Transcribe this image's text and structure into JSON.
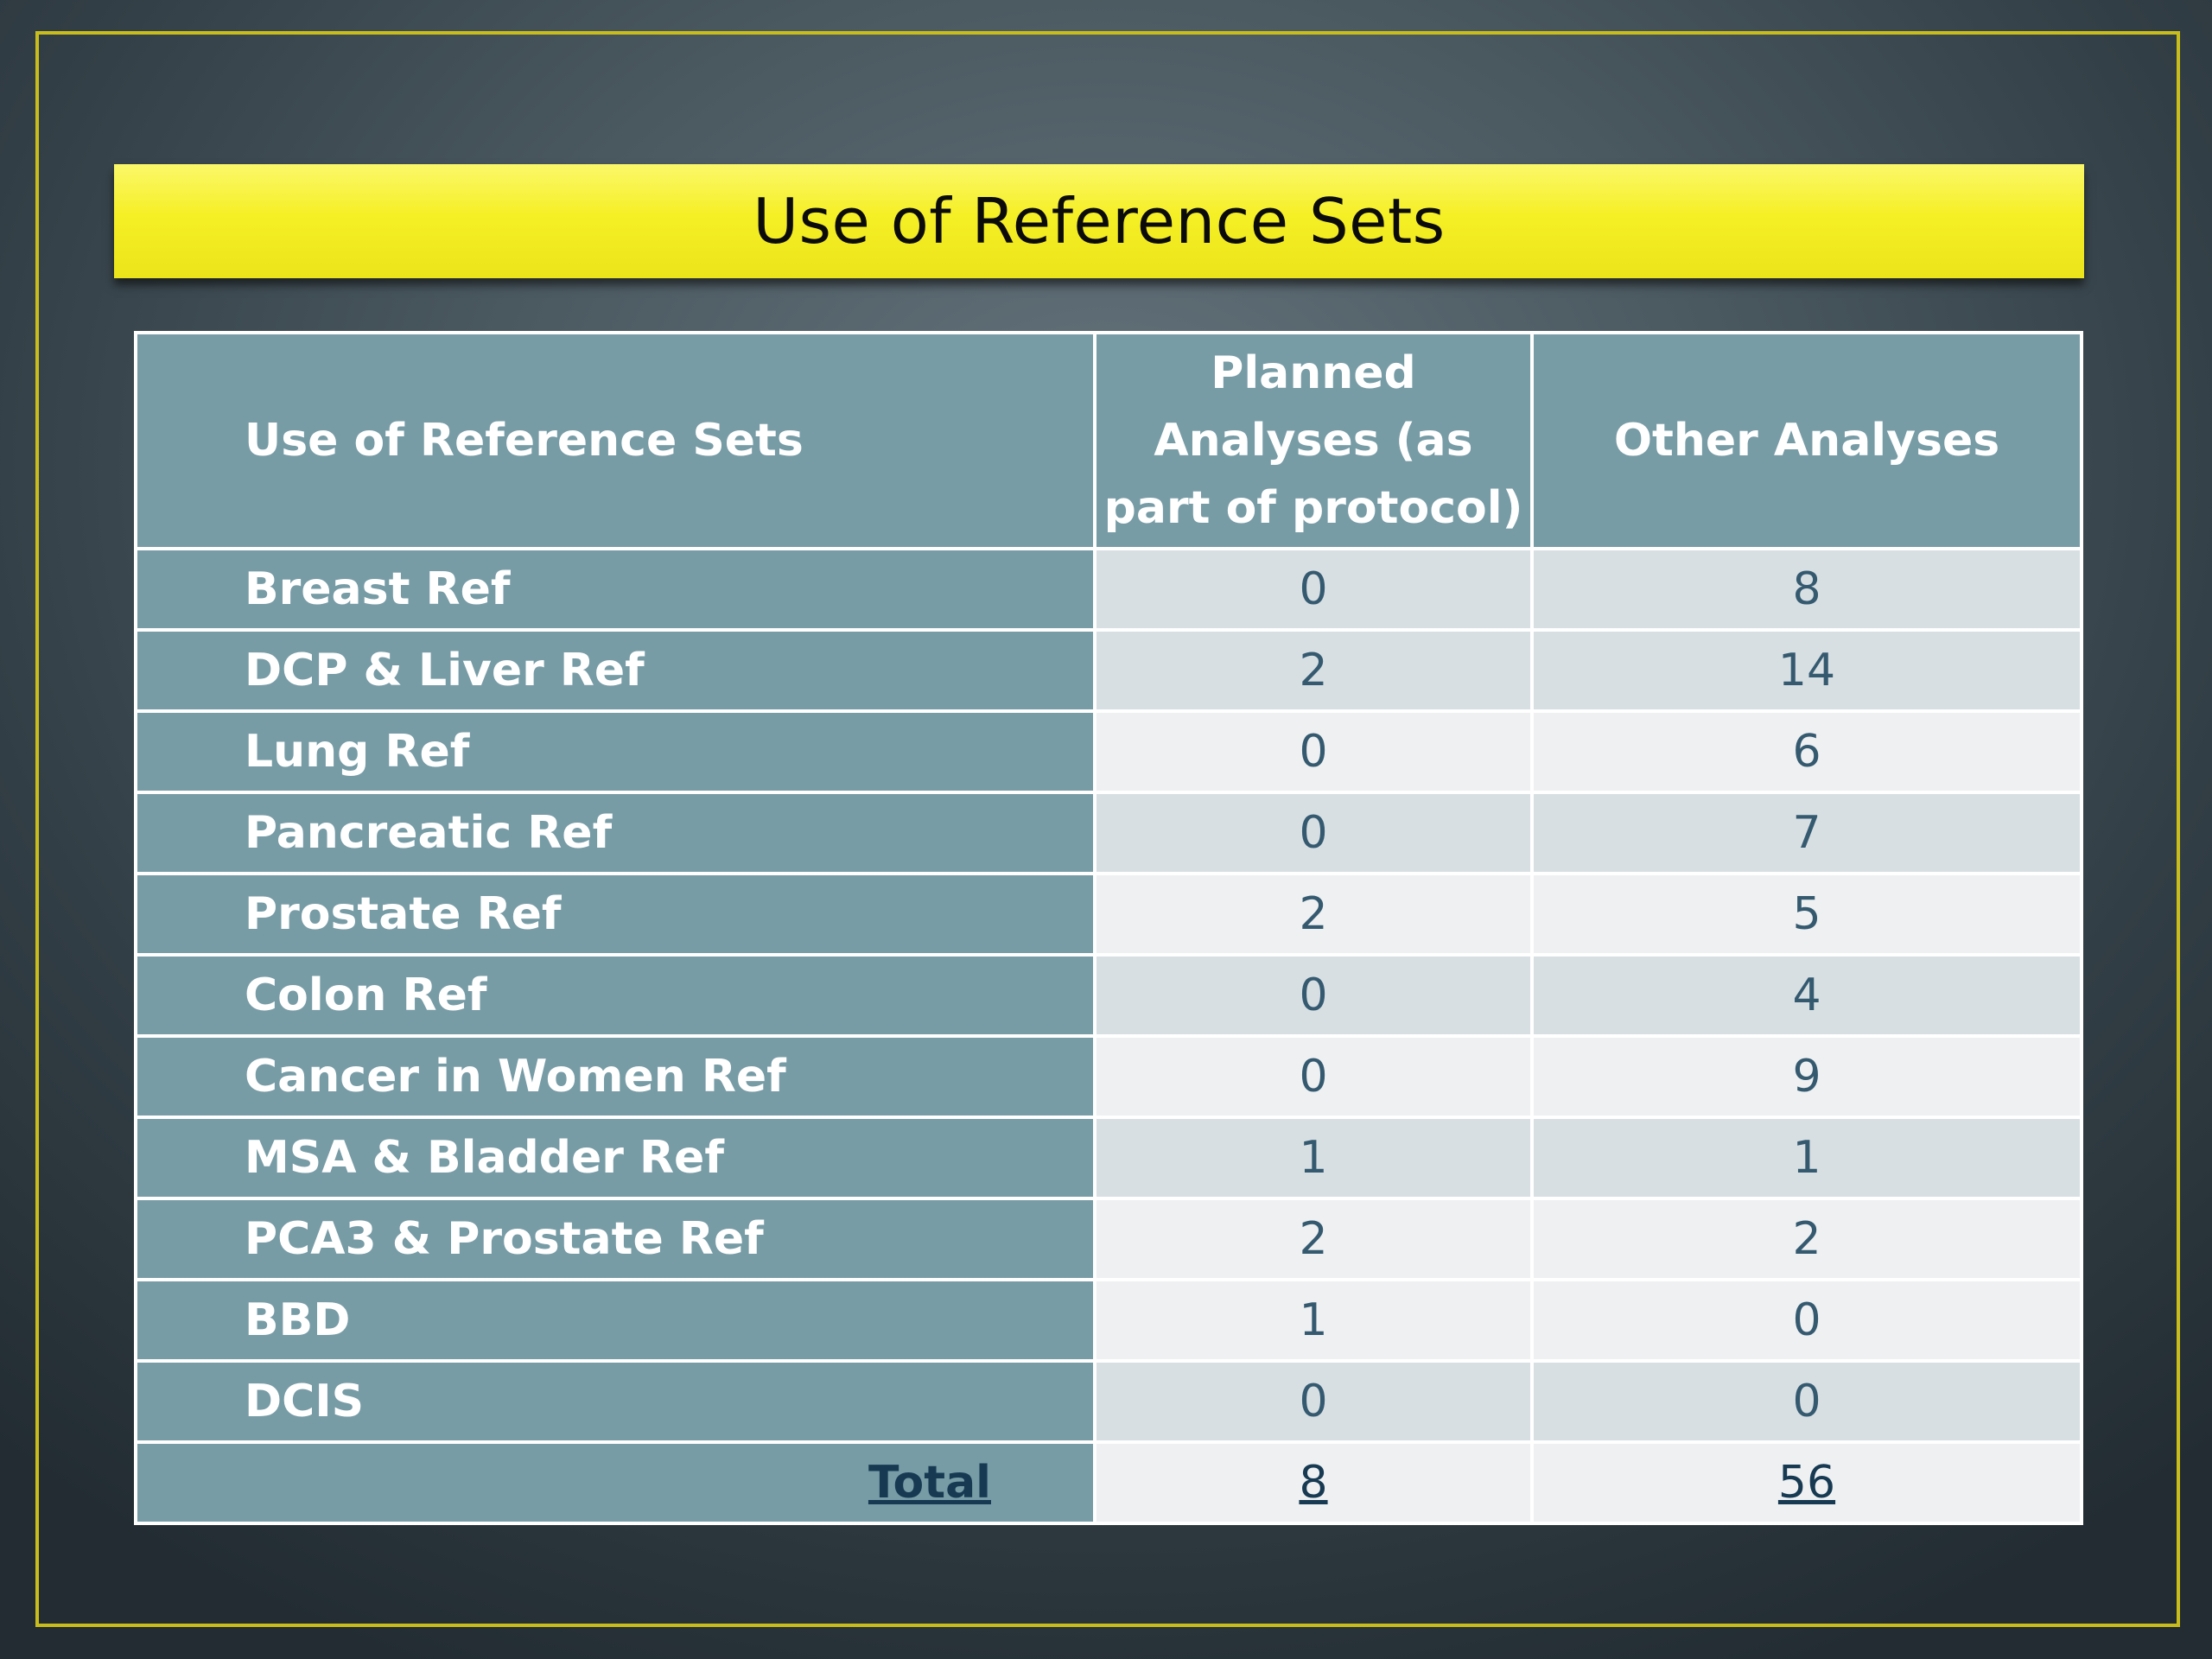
{
  "slide": {
    "title": "Use of Reference Sets"
  },
  "table": {
    "headers": {
      "label": "Use of Reference Sets",
      "planned_line1": "Planned",
      "planned_line2": "Analyses (as",
      "planned_line3": "part of protocol)",
      "other": "Other Analyses"
    },
    "rows": [
      {
        "label": "Breast Ref",
        "planned": "0",
        "other": "8"
      },
      {
        "label": "DCP & Liver Ref",
        "planned": "2",
        "other": "14"
      },
      {
        "label": "Lung Ref",
        "planned": "0",
        "other": "6"
      },
      {
        "label": "Pancreatic Ref",
        "planned": "0",
        "other": "7"
      },
      {
        "label": "Prostate Ref",
        "planned": "2",
        "other": "5"
      },
      {
        "label": "Colon Ref",
        "planned": "0",
        "other": "4"
      },
      {
        "label": "Cancer in Women Ref",
        "planned": "0",
        "other": "9"
      },
      {
        "label": "MSA & Bladder Ref",
        "planned": "1",
        "other": "1"
      },
      {
        "label": "PCA3 & Prostate Ref",
        "planned": "2",
        "other": "2"
      },
      {
        "label": "BBD",
        "planned": "1",
        "other": "0"
      },
      {
        "label": "DCIS",
        "planned": "0",
        "other": "0"
      }
    ],
    "total": {
      "label": "Total",
      "planned": "8",
      "other": "56"
    }
  },
  "colors": {
    "banner": "#f5ef25",
    "frame": "#c9bd1c",
    "header_bg": "#779ca6",
    "number_text": "#355a70",
    "total_text": "#173a52"
  }
}
